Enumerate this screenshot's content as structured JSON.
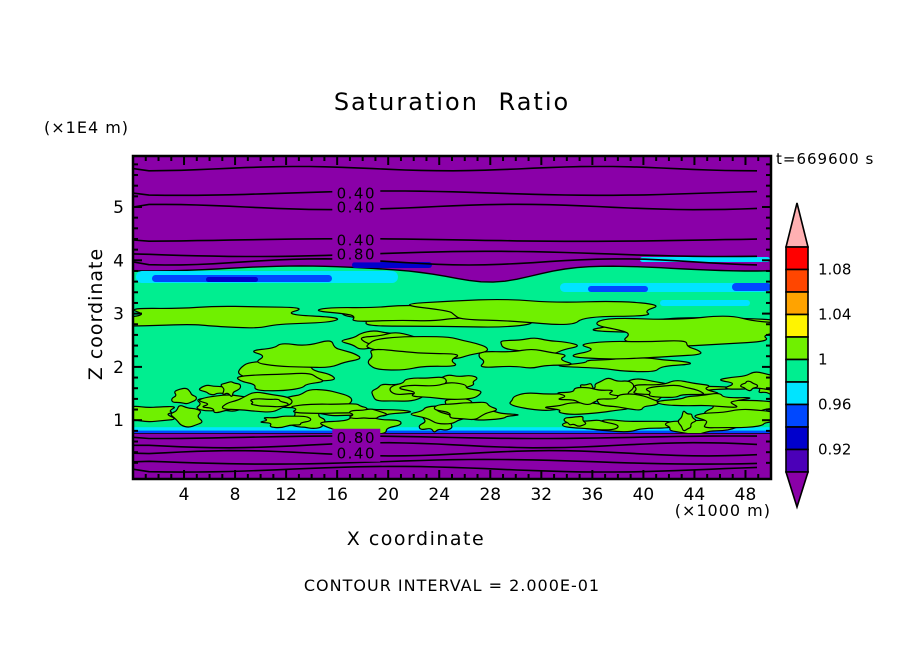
{
  "chart_data": {
    "type": "heatmap",
    "variant": "filled-contour-plot",
    "title": "Saturation Ratio",
    "time_label": "t=669600 s",
    "xlabel": "X coordinate",
    "x_unit": "(×1000 m)",
    "ylabel": "Z coordinate",
    "y_unit": "(×1E4 m)",
    "footer": "CONTOUR INTERVAL = 2.000E-01",
    "contour_interval": 0.2,
    "x_range": [
      0,
      50
    ],
    "y_range": [
      0,
      6
    ],
    "x_ticks": [
      4,
      8,
      12,
      16,
      20,
      24,
      28,
      32,
      36,
      40,
      44,
      48
    ],
    "y_ticks": [
      1,
      2,
      3,
      4,
      5
    ],
    "grid": false,
    "legend_position": "right-colorbar",
    "contour_lines": [
      {
        "z": 5.72,
        "label": null
      },
      {
        "z": 5.26,
        "label": "0.40"
      },
      {
        "z": 5.0,
        "label": "0.40"
      },
      {
        "z": 4.38,
        "label": "0.40"
      },
      {
        "z": 4.12,
        "label": "0.80"
      },
      {
        "z": 3.97,
        "label": null
      },
      {
        "z": 0.68,
        "label": "0.80"
      },
      {
        "z": 0.53,
        "label": null
      },
      {
        "z": 0.38,
        "label": "0.40"
      },
      {
        "z": 0.22,
        "label": null
      },
      {
        "z": 0.08,
        "label": null
      }
    ],
    "contour_label_x": 17.5,
    "bands": {
      "subsaturated_top": {
        "color": "#8A00A8",
        "z_top": 6.0,
        "z_bottom": 3.85
      },
      "near_saturation": {
        "color": "#00EE90",
        "z_top": 3.85,
        "z_bottom": 0.76
      },
      "supersaturated_patches": {
        "color": "#70F000",
        "z_top": 3.5,
        "z_bottom": 0.85
      },
      "transition_cyan": {
        "color": "#00E4FF",
        "z": 3.85
      },
      "transition_blue": {
        "color": "#0048FF",
        "z": 3.85
      },
      "transition_navy": {
        "color": "#0000CC",
        "z": 3.9
      },
      "subsaturated_bottom": {
        "color": "#8A00A8",
        "z_top": 0.76,
        "z_bottom": 0.0
      }
    },
    "colorbar": {
      "labels": [
        "1.08",
        "1.04",
        "1",
        "0.96",
        "0.92"
      ],
      "label_after_segment": [
        0,
        2,
        4,
        6,
        8
      ],
      "segment_colors": [
        "#FF0000",
        "#FF4600",
        "#FFA300",
        "#FFF400",
        "#70F000",
        "#00EE90",
        "#00E4FF",
        "#0048FF",
        "#0000CC",
        "#4B00B8"
      ],
      "arrow_top_color": "#FFB0B2",
      "arrow_bottom_color": "#8A00A8"
    }
  }
}
